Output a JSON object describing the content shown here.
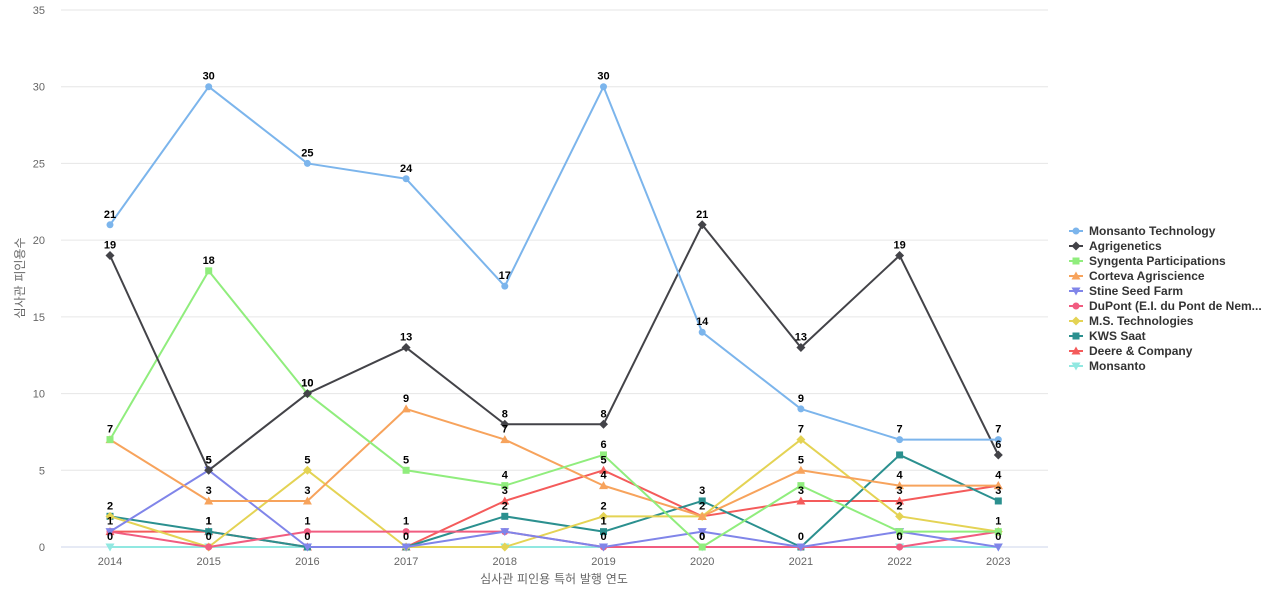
{
  "chart_data": {
    "type": "line",
    "xlabel": "심사관 피인용 특허 발행 연도",
    "ylabel": "심사관 피인용수",
    "ylim": [
      0,
      35
    ],
    "yticks": [
      0,
      5,
      10,
      15,
      20,
      25,
      30,
      35
    ],
    "grid": true,
    "legend_position": "right",
    "x": [
      "2014",
      "2015",
      "2016",
      "2017",
      "2018",
      "2019",
      "2020",
      "2021",
      "2022",
      "2023"
    ],
    "series": [
      {
        "name": "Monsanto Technology",
        "color": "#7cb5ec",
        "marker": "circle",
        "values": [
          21,
          30,
          25,
          24,
          17,
          30,
          14,
          9,
          7,
          7
        ]
      },
      {
        "name": "Agrigenetics",
        "color": "#434348",
        "marker": "diamond",
        "values": [
          19,
          5,
          10,
          13,
          8,
          8,
          21,
          13,
          19,
          6
        ]
      },
      {
        "name": "Syngenta Participations",
        "color": "#90ed7d",
        "marker": "square",
        "values": [
          7,
          18,
          10,
          5,
          4,
          6,
          0,
          4,
          1,
          1
        ]
      },
      {
        "name": "Corteva Agriscience",
        "color": "#f7a35c",
        "marker": "triangle",
        "values": [
          7,
          3,
          3,
          9,
          7,
          4,
          2,
          5,
          4,
          4
        ]
      },
      {
        "name": "Stine Seed Farm",
        "color": "#8085e9",
        "marker": "triangle-down",
        "values": [
          1,
          5,
          0,
          0,
          1,
          0,
          1,
          0,
          1,
          0
        ]
      },
      {
        "name": "DuPont (E.I. du Pont de Nem...",
        "color": "#f15c80",
        "marker": "circle",
        "values": [
          1,
          0,
          1,
          1,
          1,
          0,
          0,
          0,
          0,
          1
        ]
      },
      {
        "name": "M.S. Technologies",
        "color": "#e4d354",
        "marker": "diamond",
        "values": [
          2,
          0,
          5,
          0,
          0,
          2,
          2,
          7,
          2,
          1
        ]
      },
      {
        "name": "KWS Saat",
        "color": "#2b908f",
        "marker": "square",
        "values": [
          2,
          1,
          0,
          0,
          2,
          1,
          3,
          0,
          6,
          3
        ]
      },
      {
        "name": "Deere & Company",
        "color": "#f45b5b",
        "marker": "triangle",
        "values": [
          1,
          1,
          0,
          0,
          3,
          5,
          2,
          3,
          3,
          4
        ]
      },
      {
        "name": "Monsanto",
        "color": "#91e8e1",
        "marker": "triangle-down",
        "values": [
          0,
          0,
          0,
          0,
          0,
          0,
          0,
          0,
          0,
          0
        ]
      }
    ],
    "data_labels": [
      {
        "series": 0,
        "index": 0
      },
      {
        "series": 0,
        "index": 1
      },
      {
        "series": 0,
        "index": 2
      },
      {
        "series": 0,
        "index": 3
      },
      {
        "series": 0,
        "index": 4
      },
      {
        "series": 0,
        "index": 5
      },
      {
        "series": 0,
        "index": 6
      },
      {
        "series": 0,
        "index": 7
      },
      {
        "series": 0,
        "index": 8
      },
      {
        "series": 0,
        "index": 9
      },
      {
        "series": 1,
        "index": 0
      },
      {
        "series": 1,
        "index": 1
      },
      {
        "series": 1,
        "index": 2
      },
      {
        "series": 1,
        "index": 3
      },
      {
        "series": 1,
        "index": 4
      },
      {
        "series": 1,
        "index": 5
      },
      {
        "series": 1,
        "index": 6
      },
      {
        "series": 1,
        "index": 7
      },
      {
        "series": 1,
        "index": 8
      },
      {
        "series": 1,
        "index": 9
      },
      {
        "series": 2,
        "index": 0
      },
      {
        "series": 2,
        "index": 1
      },
      {
        "series": 2,
        "index": 2
      },
      {
        "series": 2,
        "index": 3
      },
      {
        "series": 2,
        "index": 4
      },
      {
        "series": 2,
        "index": 5
      },
      {
        "series": 3,
        "index": 1
      },
      {
        "series": 3,
        "index": 2
      },
      {
        "series": 3,
        "index": 3
      },
      {
        "series": 3,
        "index": 4
      },
      {
        "series": 3,
        "index": 5
      },
      {
        "series": 3,
        "index": 7
      },
      {
        "series": 3,
        "index": 8
      },
      {
        "series": 3,
        "index": 9
      },
      {
        "series": 4,
        "index": 1
      },
      {
        "series": 5,
        "index": 0
      },
      {
        "series": 5,
        "index": 2
      },
      {
        "series": 5,
        "index": 3
      },
      {
        "series": 5,
        "index": 6
      },
      {
        "series": 5,
        "index": 8
      },
      {
        "series": 6,
        "index": 0
      },
      {
        "series": 6,
        "index": 2
      },
      {
        "series": 6,
        "index": 5
      },
      {
        "series": 6,
        "index": 6
      },
      {
        "series": 6,
        "index": 7
      },
      {
        "series": 6,
        "index": 8
      },
      {
        "series": 6,
        "index": 9
      },
      {
        "series": 7,
        "index": 1
      },
      {
        "series": 7,
        "index": 4
      },
      {
        "series": 7,
        "index": 5
      },
      {
        "series": 7,
        "index": 6
      },
      {
        "series": 7,
        "index": 7
      },
      {
        "series": 7,
        "index": 9
      },
      {
        "series": 8,
        "index": 1
      },
      {
        "series": 8,
        "index": 4
      },
      {
        "series": 8,
        "index": 5
      },
      {
        "series": 8,
        "index": 7
      },
      {
        "series": 8,
        "index": 8
      },
      {
        "series": 9,
        "index": 0
      },
      {
        "series": 9,
        "index": 1
      },
      {
        "series": 9,
        "index": 2
      },
      {
        "series": 9,
        "index": 3
      },
      {
        "series": 9,
        "index": 5
      },
      {
        "series": 9,
        "index": 6
      },
      {
        "series": 9,
        "index": 8
      },
      {
        "series": 9,
        "index": 9
      }
    ]
  }
}
